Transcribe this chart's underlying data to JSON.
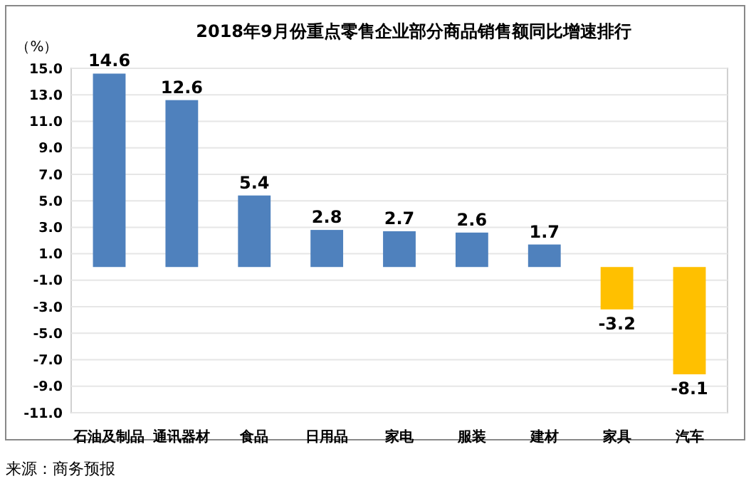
{
  "chart_data": {
    "type": "bar",
    "title": "2018年9月份重点零售企业部分商品销售额同比增速排行",
    "ylabel": "（%）",
    "categories": [
      "石油及制品",
      "通讯器材",
      "食品",
      "日用品",
      "家电",
      "服装",
      "建材",
      "家具",
      "汽车"
    ],
    "values": [
      14.6,
      12.6,
      5.4,
      2.8,
      2.7,
      2.6,
      1.7,
      -3.2,
      -8.1
    ],
    "colors": [
      "#4f81bd",
      "#4f81bd",
      "#4f81bd",
      "#4f81bd",
      "#4f81bd",
      "#4f81bd",
      "#4f81bd",
      "#ffc000",
      "#ffc000"
    ],
    "ylim": [
      -11,
      15
    ],
    "yticks": [
      {
        "value": 15,
        "label": "15.0"
      },
      {
        "value": 13,
        "label": "13.0"
      },
      {
        "value": 11,
        "label": "11.0"
      },
      {
        "value": 9,
        "label": "9.0"
      },
      {
        "value": 7,
        "label": "7.0"
      },
      {
        "value": 5,
        "label": "5.0"
      },
      {
        "value": 3,
        "label": "3.0"
      },
      {
        "value": 1,
        "label": "1.0"
      },
      {
        "value": -1,
        "label": "-1.0"
      },
      {
        "value": -3,
        "label": "-3.0"
      },
      {
        "value": -5,
        "label": "-5.0"
      },
      {
        "value": -7,
        "label": "-7.0"
      },
      {
        "value": -9,
        "label": "-9.0"
      },
      {
        "value": -11,
        "label": "-11.0"
      }
    ],
    "grid": "y",
    "data_labels": true,
    "annotations": [
      "来源：商务预报"
    ]
  }
}
